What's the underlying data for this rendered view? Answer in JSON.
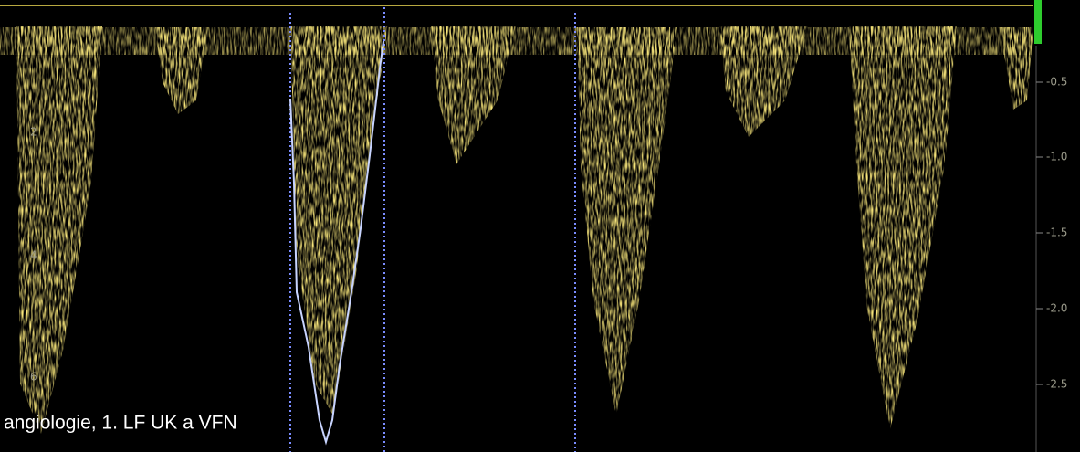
{
  "right_scale": {
    "labels": [
      "-0.5",
      "-1.0",
      "-1.5",
      "-2.0",
      "-2.5"
    ]
  },
  "left_scale": {
    "labels": [
      "2",
      "4",
      "6"
    ]
  },
  "caption": "angiologie, 1. LF UK a VFN"
}
